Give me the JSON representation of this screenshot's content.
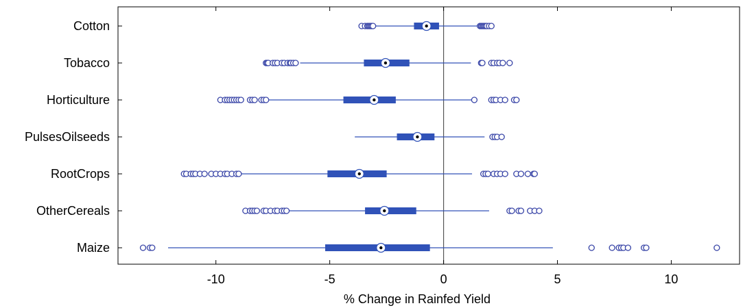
{
  "chart_data": {
    "type": "boxplot",
    "orientation": "horizontal",
    "xlabel": "% Change in Rainfed Yield",
    "xlim": [
      -14.3,
      13
    ],
    "xticks": [
      -10,
      -5,
      0,
      5,
      10
    ],
    "reference_line_x": 0,
    "grid": false,
    "legend": "none",
    "colors": {
      "box": "#3052b8",
      "outlier": "#3b47a8",
      "axis": "#000000",
      "zero_line": "#555555"
    },
    "categories": [
      "Cotton",
      "Tobacco",
      "Horticulture",
      "PulsesOilseeds",
      "RootCrops",
      "OtherCereals",
      "Maize"
    ],
    "boxes": [
      {
        "name": "Cotton",
        "whisker_low": -3.0,
        "q1": -1.3,
        "median": -0.75,
        "q3": -0.2,
        "whisker_high": 1.5,
        "outliers": [
          -3.6,
          -3.45,
          -3.35,
          -3.3,
          -3.25,
          -3.2,
          -3.15,
          -3.1,
          1.6,
          1.65,
          1.7,
          1.75,
          1.8,
          1.85,
          1.9,
          2.0,
          2.1
        ]
      },
      {
        "name": "Tobacco",
        "whisker_low": -6.3,
        "q1": -3.5,
        "median": -2.55,
        "q3": -1.5,
        "whisker_high": 1.2,
        "outliers": [
          -7.8,
          -7.75,
          -7.7,
          -7.5,
          -7.4,
          -7.3,
          -7.1,
          -7.0,
          -6.85,
          -6.75,
          -6.7,
          -6.6,
          -6.5,
          1.65,
          1.7,
          2.1,
          2.2,
          2.35,
          2.45,
          2.6,
          2.9
        ]
      },
      {
        "name": "Horticulture",
        "whisker_low": -7.7,
        "q1": -4.4,
        "median": -3.05,
        "q3": -2.1,
        "whisker_high": 1.3,
        "outliers": [
          -9.8,
          -9.6,
          -9.5,
          -9.4,
          -9.3,
          -9.2,
          -9.1,
          -9.0,
          -8.9,
          -8.5,
          -8.4,
          -8.3,
          -8.0,
          -7.9,
          -7.8,
          1.35,
          2.1,
          2.2,
          2.3,
          2.5,
          2.7,
          3.1,
          3.2
        ]
      },
      {
        "name": "PulsesOilseeds",
        "whisker_low": -3.9,
        "q1": -2.05,
        "median": -1.15,
        "q3": -0.4,
        "whisker_high": 1.8,
        "outliers": [
          2.15,
          2.25,
          2.35,
          2.55
        ]
      },
      {
        "name": "RootCrops",
        "whisker_low": -8.9,
        "q1": -5.1,
        "median": -3.7,
        "q3": -2.5,
        "whisker_high": 1.25,
        "outliers": [
          -11.4,
          -11.3,
          -11.1,
          -11.0,
          -10.9,
          -10.7,
          -10.5,
          -10.2,
          -10.0,
          -9.8,
          -9.6,
          -9.5,
          -9.3,
          -9.1,
          -9.0,
          1.75,
          1.85,
          1.95,
          2.2,
          2.35,
          2.5,
          2.7,
          3.2,
          3.4,
          3.7,
          3.95,
          4.0
        ]
      },
      {
        "name": "OtherCereals",
        "whisker_low": -6.8,
        "q1": -3.45,
        "median": -2.6,
        "q3": -1.2,
        "whisker_high": 2.0,
        "outliers": [
          -8.7,
          -8.5,
          -8.4,
          -8.3,
          -8.2,
          -7.9,
          -7.8,
          -7.6,
          -7.4,
          -7.3,
          -7.1,
          -7.0,
          -6.9,
          2.9,
          3.0,
          3.3,
          3.4,
          3.8,
          4.0,
          4.2
        ]
      },
      {
        "name": "Maize",
        "whisker_low": -12.1,
        "q1": -5.2,
        "median": -2.75,
        "q3": -0.6,
        "whisker_high": 4.8,
        "outliers": [
          -13.2,
          -12.9,
          -12.8,
          6.5,
          7.4,
          7.7,
          7.8,
          7.9,
          8.1,
          8.8,
          8.9,
          12.0
        ]
      }
    ]
  }
}
